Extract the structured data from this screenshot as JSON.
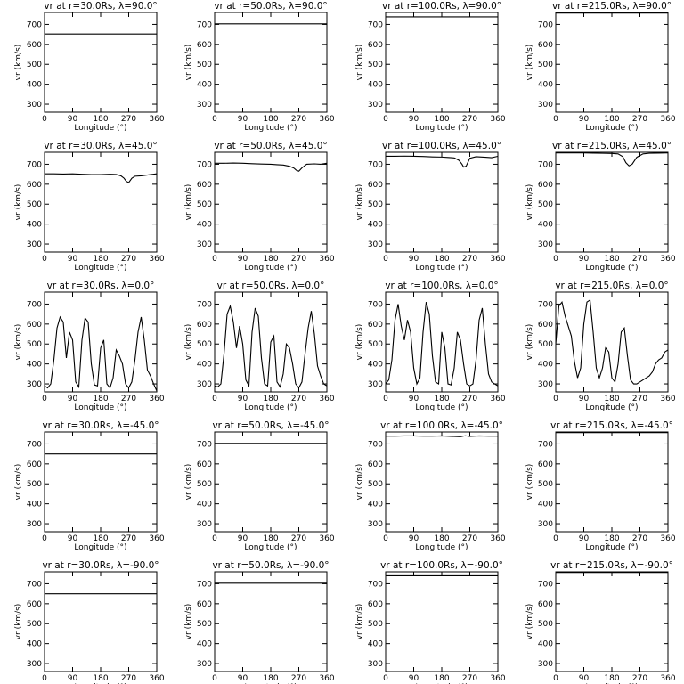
{
  "chart_data": {
    "type": "line",
    "rows_lambda_deg": [
      90.0,
      45.0,
      0.0,
      -45.0,
      -90.0
    ],
    "cols_r_Rs": [
      30.0,
      50.0,
      100.0,
      215.0
    ],
    "xlabel": "Longitude (°)",
    "ylabel": "vr (km/s)",
    "xlim": [
      0,
      360
    ],
    "ylim": [
      260,
      760
    ],
    "xticks": [
      0,
      90,
      180,
      270,
      360
    ],
    "yticks": [
      300,
      400,
      500,
      600,
      700
    ],
    "panels": [
      {
        "title": "vr at r=30.0Rs, λ=90.0°",
        "x": [
          0,
          360
        ],
        "y": [
          652,
          652
        ]
      },
      {
        "title": "vr at r=50.0Rs, λ=90.0°",
        "x": [
          0,
          360
        ],
        "y": [
          703,
          703
        ]
      },
      {
        "title": "vr at r=100.0Rs, λ=90.0°",
        "x": [
          0,
          360
        ],
        "y": [
          738,
          738
        ]
      },
      {
        "title": "vr at r=215.0Rs, λ=90.0°",
        "x": [
          0,
          360
        ],
        "y": [
          757,
          757
        ]
      },
      {
        "title": "vr at r=30.0Rs, λ=45.0°",
        "x": [
          0,
          30,
          60,
          90,
          120,
          150,
          180,
          210,
          230,
          245,
          255,
          262,
          270,
          280,
          290,
          310,
          340,
          360
        ],
        "y": [
          652,
          652,
          651,
          652,
          650,
          648,
          648,
          650,
          649,
          642,
          630,
          615,
          608,
          630,
          640,
          642,
          648,
          652
        ]
      },
      {
        "title": "vr at r=50.0Rs, λ=45.0°",
        "x": [
          0,
          30,
          60,
          90,
          120,
          150,
          180,
          200,
          220,
          240,
          255,
          262,
          270,
          280,
          295,
          320,
          340,
          360
        ],
        "y": [
          705,
          705,
          706,
          705,
          703,
          701,
          700,
          698,
          696,
          690,
          680,
          670,
          665,
          682,
          700,
          702,
          700,
          705
        ]
      },
      {
        "title": "vr at r=100.0Rs, λ=45.0°",
        "x": [
          0,
          30,
          60,
          90,
          120,
          150,
          180,
          200,
          220,
          235,
          245,
          250,
          258,
          270,
          290,
          320,
          340,
          360
        ],
        "y": [
          740,
          740,
          741,
          740,
          739,
          737,
          736,
          734,
          732,
          720,
          700,
          686,
          690,
          730,
          738,
          735,
          733,
          740
        ]
      },
      {
        "title": "vr at r=215.0Rs, λ=45.0°",
        "x": [
          0,
          30,
          60,
          90,
          120,
          150,
          180,
          200,
          215,
          225,
          235,
          245,
          260,
          280,
          300,
          330,
          360
        ],
        "y": [
          757,
          757,
          757,
          757,
          756,
          755,
          754,
          752,
          738,
          708,
          692,
          700,
          735,
          752,
          755,
          756,
          757
        ]
      },
      {
        "title": "vr at r=30.0Rs, λ=0.0°",
        "x": [
          0,
          10,
          20,
          30,
          40,
          50,
          60,
          70,
          80,
          90,
          100,
          110,
          120,
          130,
          140,
          150,
          160,
          170,
          180,
          190,
          200,
          210,
          220,
          230,
          240,
          250,
          260,
          270,
          280,
          290,
          300,
          310,
          320,
          330,
          340,
          350,
          360
        ],
        "y": [
          290,
          280,
          300,
          420,
          580,
          635,
          610,
          430,
          560,
          520,
          310,
          285,
          520,
          630,
          610,
          400,
          295,
          290,
          480,
          520,
          300,
          280,
          330,
          470,
          440,
          400,
          300,
          280,
          310,
          420,
          560,
          635,
          520,
          370,
          340,
          300,
          265
        ]
      },
      {
        "title": "vr at r=50.0Rs, λ=0.0°",
        "x": [
          0,
          10,
          20,
          30,
          40,
          50,
          60,
          70,
          80,
          90,
          100,
          110,
          120,
          130,
          140,
          150,
          160,
          170,
          180,
          190,
          200,
          210,
          220,
          230,
          240,
          250,
          260,
          270,
          280,
          290,
          300,
          310,
          320,
          330,
          340,
          350,
          360
        ],
        "y": [
          290,
          285,
          300,
          450,
          650,
          690,
          610,
          480,
          590,
          500,
          320,
          290,
          560,
          680,
          640,
          430,
          300,
          290,
          510,
          540,
          310,
          285,
          350,
          500,
          480,
          400,
          300,
          280,
          310,
          450,
          580,
          665,
          550,
          390,
          340,
          300,
          290
        ]
      },
      {
        "title": "vr at r=100.0Rs, λ=0.0°",
        "x": [
          0,
          10,
          20,
          30,
          40,
          50,
          60,
          70,
          80,
          90,
          100,
          110,
          120,
          130,
          140,
          150,
          160,
          170,
          180,
          190,
          200,
          210,
          220,
          230,
          240,
          250,
          260,
          270,
          280,
          290,
          300,
          310,
          320,
          330,
          340,
          350,
          360
        ],
        "y": [
          300,
          320,
          420,
          620,
          700,
          590,
          520,
          620,
          560,
          380,
          300,
          330,
          560,
          710,
          650,
          440,
          310,
          300,
          560,
          480,
          300,
          295,
          380,
          560,
          520,
          400,
          300,
          290,
          300,
          420,
          620,
          680,
          500,
          350,
          310,
          300,
          290
        ]
      },
      {
        "title": "vr at r=215.0Rs, λ=0.0°",
        "x": [
          0,
          10,
          20,
          30,
          40,
          50,
          60,
          70,
          80,
          90,
          100,
          110,
          120,
          130,
          140,
          150,
          160,
          170,
          180,
          190,
          200,
          210,
          220,
          230,
          240,
          250,
          260,
          270,
          280,
          290,
          300,
          310,
          320,
          330,
          340,
          350,
          360
        ],
        "y": [
          500,
          690,
          710,
          640,
          590,
          540,
          410,
          330,
          380,
          600,
          710,
          720,
          560,
          380,
          330,
          380,
          480,
          460,
          330,
          310,
          400,
          560,
          580,
          440,
          320,
          300,
          300,
          310,
          320,
          330,
          340,
          360,
          400,
          420,
          430,
          460,
          470
        ]
      },
      {
        "title": "vr at r=30.0Rs, λ=-45.0°",
        "x": [
          0,
          360
        ],
        "y": [
          650,
          650
        ]
      },
      {
        "title": "vr at r=50.0Rs, λ=-45.0°",
        "x": [
          0,
          360
        ],
        "y": [
          703,
          703
        ]
      },
      {
        "title": "vr at r=100.0Rs, λ=-45.0°",
        "x": [
          0,
          30,
          60,
          90,
          120,
          150,
          180,
          210,
          240,
          255,
          270,
          300,
          330,
          360
        ],
        "y": [
          739,
          739,
          740,
          740,
          739,
          739,
          740,
          738,
          736,
          741,
          738,
          740,
          739,
          739
        ]
      },
      {
        "title": "vr at r=215.0Rs, λ=-45.0°",
        "x": [
          0,
          360
        ],
        "y": [
          757,
          757
        ]
      },
      {
        "title": "vr at r=30.0Rs, λ=-90.0°",
        "x": [
          0,
          360
        ],
        "y": [
          650,
          650
        ]
      },
      {
        "title": "vr at r=50.0Rs, λ=-90.0°",
        "x": [
          0,
          360
        ],
        "y": [
          703,
          703
        ]
      },
      {
        "title": "vr at r=100.0Rs, λ=-90.0°",
        "x": [
          0,
          360
        ],
        "y": [
          740,
          740
        ]
      },
      {
        "title": "vr at r=215.0Rs, λ=-90.0°",
        "x": [
          0,
          360
        ],
        "y": [
          757,
          757
        ]
      }
    ]
  }
}
